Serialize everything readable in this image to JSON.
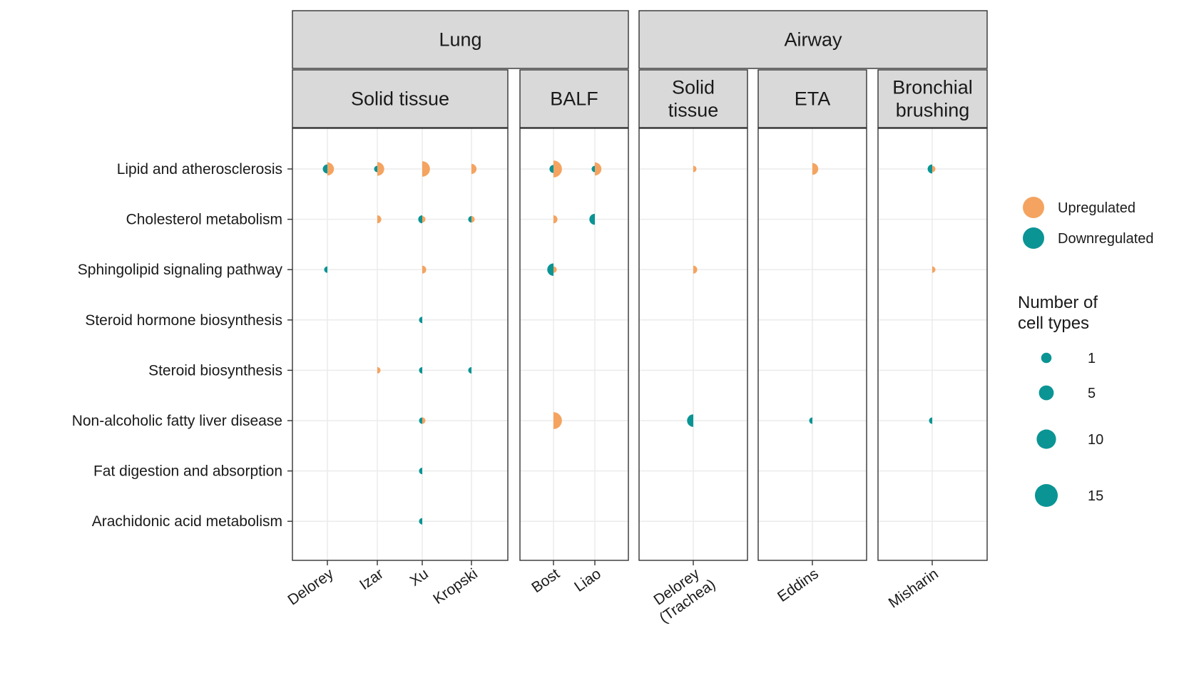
{
  "colors": {
    "up": "#F4A460",
    "down": "#0B9494",
    "strip_bg": "#D9D9D9",
    "panel_border": "#333333",
    "grid": "#EBEBEB"
  },
  "chart_data": {
    "type": "split-bubble",
    "title": "",
    "groups": [
      "Lung",
      "Airway"
    ],
    "panels": [
      {
        "group": "Lung",
        "label": "Solid tissue",
        "studies": [
          "Delorey",
          "Izar",
          "Xu",
          "Kropski"
        ]
      },
      {
        "group": "Lung",
        "label": "BALF",
        "studies": [
          "Bost",
          "Liao"
        ]
      },
      {
        "group": "Airway",
        "label": "Solid\ntissue",
        "studies": [
          "Delorey\n(Trachea)"
        ]
      },
      {
        "group": "Airway",
        "label": "ETA",
        "studies": [
          "Eddins"
        ]
      },
      {
        "group": "Airway",
        "label": "Bronchial\nbrushing",
        "studies": [
          "Misharin"
        ]
      }
    ],
    "pathways": [
      "Lipid and atherosclerosis",
      "Cholesterol metabolism",
      "Sphingolipid signaling pathway",
      "Steroid hormone biosynthesis",
      "Steroid biosynthesis",
      "Non-alcoholic fatty liver disease",
      "Fat digestion and absorption",
      "Arachidonic acid metabolism"
    ],
    "points": [
      {
        "study": "Delorey",
        "pathway": "Lipid and atherosclerosis",
        "up": 8,
        "down": 3
      },
      {
        "study": "Izar",
        "pathway": "Lipid and atherosclerosis",
        "up": 9,
        "down": 1
      },
      {
        "study": "Xu",
        "pathway": "Lipid and atherosclerosis",
        "up": 12,
        "down": 0
      },
      {
        "study": "Kropski",
        "pathway": "Lipid and atherosclerosis",
        "up": 4,
        "down": 0
      },
      {
        "study": "Bost",
        "pathway": "Lipid and atherosclerosis",
        "up": 15,
        "down": 2
      },
      {
        "study": "Liao",
        "pathway": "Lipid and atherosclerosis",
        "up": 8,
        "down": 1
      },
      {
        "study": "Delorey\n(Trachea)",
        "pathway": "Lipid and atherosclerosis",
        "up": 1,
        "down": 0
      },
      {
        "study": "Eddins",
        "pathway": "Lipid and atherosclerosis",
        "up": 6,
        "down": 0
      },
      {
        "study": "Misharin",
        "pathway": "Lipid and atherosclerosis",
        "up": 1,
        "down": 3
      },
      {
        "study": "Izar",
        "pathway": "Cholesterol metabolism",
        "up": 2,
        "down": 0
      },
      {
        "study": "Xu",
        "pathway": "Cholesterol metabolism",
        "up": 1,
        "down": 2
      },
      {
        "study": "Kropski",
        "pathway": "Cholesterol metabolism",
        "up": 1,
        "down": 1
      },
      {
        "study": "Bost",
        "pathway": "Cholesterol metabolism",
        "up": 2,
        "down": 0
      },
      {
        "study": "Liao",
        "pathway": "Cholesterol metabolism",
        "up": 0,
        "down": 5
      },
      {
        "study": "Delorey",
        "pathway": "Sphingolipid signaling pathway",
        "up": 0,
        "down": 1
      },
      {
        "study": "Xu",
        "pathway": "Sphingolipid signaling pathway",
        "up": 2,
        "down": 0
      },
      {
        "study": "Bost",
        "pathway": "Sphingolipid signaling pathway",
        "up": 1,
        "down": 7
      },
      {
        "study": "Delorey\n(Trachea)",
        "pathway": "Sphingolipid signaling pathway",
        "up": 2,
        "down": 0
      },
      {
        "study": "Misharin",
        "pathway": "Sphingolipid signaling pathway",
        "up": 1,
        "down": 0
      },
      {
        "study": "Xu",
        "pathway": "Steroid hormone biosynthesis",
        "up": 0,
        "down": 1
      },
      {
        "study": "Izar",
        "pathway": "Steroid biosynthesis",
        "up": 1,
        "down": 0
      },
      {
        "study": "Xu",
        "pathway": "Steroid biosynthesis",
        "up": 0,
        "down": 1
      },
      {
        "study": "Kropski",
        "pathway": "Steroid biosynthesis",
        "up": 0,
        "down": 1
      },
      {
        "study": "Xu",
        "pathway": "Non-alcoholic fatty liver disease",
        "up": 1,
        "down": 1
      },
      {
        "study": "Bost",
        "pathway": "Non-alcoholic fatty liver disease",
        "up": 15,
        "down": 0
      },
      {
        "study": "Delorey\n(Trachea)",
        "pathway": "Non-alcoholic fatty liver disease",
        "up": 0,
        "down": 7
      },
      {
        "study": "Eddins",
        "pathway": "Non-alcoholic fatty liver disease",
        "up": 0,
        "down": 1
      },
      {
        "study": "Misharin",
        "pathway": "Non-alcoholic fatty liver disease",
        "up": 0,
        "down": 1
      },
      {
        "study": "Xu",
        "pathway": "Fat digestion and absorption",
        "up": 0,
        "down": 1
      },
      {
        "study": "Xu",
        "pathway": "Arachidonic acid metabolism",
        "up": 0,
        "down": 1
      }
    ],
    "legend": {
      "color_items": [
        "Upregulated",
        "Downregulated"
      ],
      "size_title": "Number of\ncell types",
      "size_breaks": [
        1,
        5,
        10,
        15
      ]
    }
  }
}
